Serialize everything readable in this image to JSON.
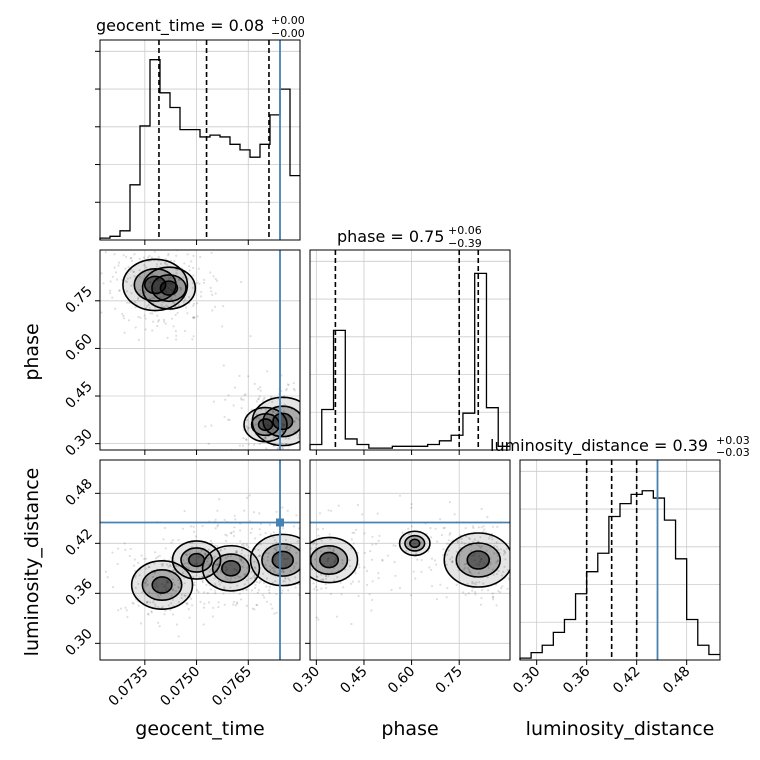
{
  "chart_data": {
    "type": "corner",
    "truth_color": "#4682b4",
    "params": [
      {
        "name": "geocent_time",
        "axis_label": "geocent_time",
        "range": [
          0.0722,
          0.078
        ],
        "ticks": [
          0.0735,
          0.075,
          0.0765
        ],
        "tick_labels": [
          "0.0735",
          "0.0750",
          "0.0765"
        ],
        "title_main": "geocent_time = 0.08",
        "title_sup": "+0.00",
        "title_sub": "−0.00",
        "quantiles": [
          0.07391,
          0.07529,
          0.0771
        ],
        "truth": 0.07742,
        "hist_density": [
          0.01,
          0.02,
          0.05,
          0.3,
          0.62,
          0.98,
          0.8,
          0.72,
          0.6,
          0.6,
          0.56,
          0.57,
          0.56,
          0.52,
          0.49,
          0.45,
          0.52,
          0.68,
          0.82,
          0.35
        ]
      },
      {
        "name": "phase",
        "axis_label": "phase",
        "range": [
          0.28,
          0.91
        ],
        "ticks": [
          0.3,
          0.45,
          0.6,
          0.75
        ],
        "tick_labels": [
          "0.30",
          "0.45",
          "0.60",
          "0.75"
        ],
        "title_main": "phase = 0.75",
        "title_sup": "+0.06",
        "title_sub": "−0.39",
        "quantiles": [
          0.36,
          0.75,
          0.81
        ],
        "truth": null,
        "hist_density": [
          0.03,
          0.22,
          0.65,
          0.06,
          0.03,
          0.01,
          0.01,
          0.02,
          0.02,
          0.02,
          0.03,
          0.05,
          0.08,
          0.2,
          0.96,
          0.23,
          0.02
        ]
      },
      {
        "name": "luminosity_distance",
        "axis_label": "luminosity_distance",
        "range": [
          0.28,
          0.52
        ],
        "ticks": [
          0.3,
          0.36,
          0.42,
          0.48
        ],
        "tick_labels": [
          "0.30",
          "0.36",
          "0.42",
          "0.48"
        ],
        "title_main": "luminosity_distance = 0.39",
        "title_sup": "+0.03",
        "title_sub": "−0.03",
        "quantiles": [
          0.36,
          0.39,
          0.42
        ],
        "truth": 0.445,
        "hist_density": [
          0.01,
          0.04,
          0.08,
          0.15,
          0.22,
          0.36,
          0.48,
          0.58,
          0.78,
          0.85,
          0.9,
          0.92,
          0.88,
          0.76,
          0.55,
          0.22,
          0.08,
          0.03
        ]
      }
    ],
    "pairs": [
      {
        "x": "geocent_time",
        "y": "phase",
        "modes": [
          [
            0.0738,
            0.8,
            0.9
          ],
          [
            0.0742,
            0.79,
            0.6
          ],
          [
            0.0775,
            0.37,
            0.8
          ],
          [
            0.077,
            0.36,
            0.4
          ]
        ]
      },
      {
        "x": "geocent_time",
        "y": "luminosity_distance",
        "modes": [
          [
            0.074,
            0.37,
            0.8
          ],
          [
            0.075,
            0.4,
            0.5
          ],
          [
            0.076,
            0.39,
            0.7
          ],
          [
            0.0775,
            0.4,
            0.9
          ]
        ]
      },
      {
        "x": "phase",
        "y": "luminosity_distance",
        "modes": [
          [
            0.34,
            0.4,
            0.7
          ],
          [
            0.81,
            0.4,
            1.0
          ],
          [
            0.61,
            0.42,
            0.2
          ]
        ]
      }
    ]
  }
}
